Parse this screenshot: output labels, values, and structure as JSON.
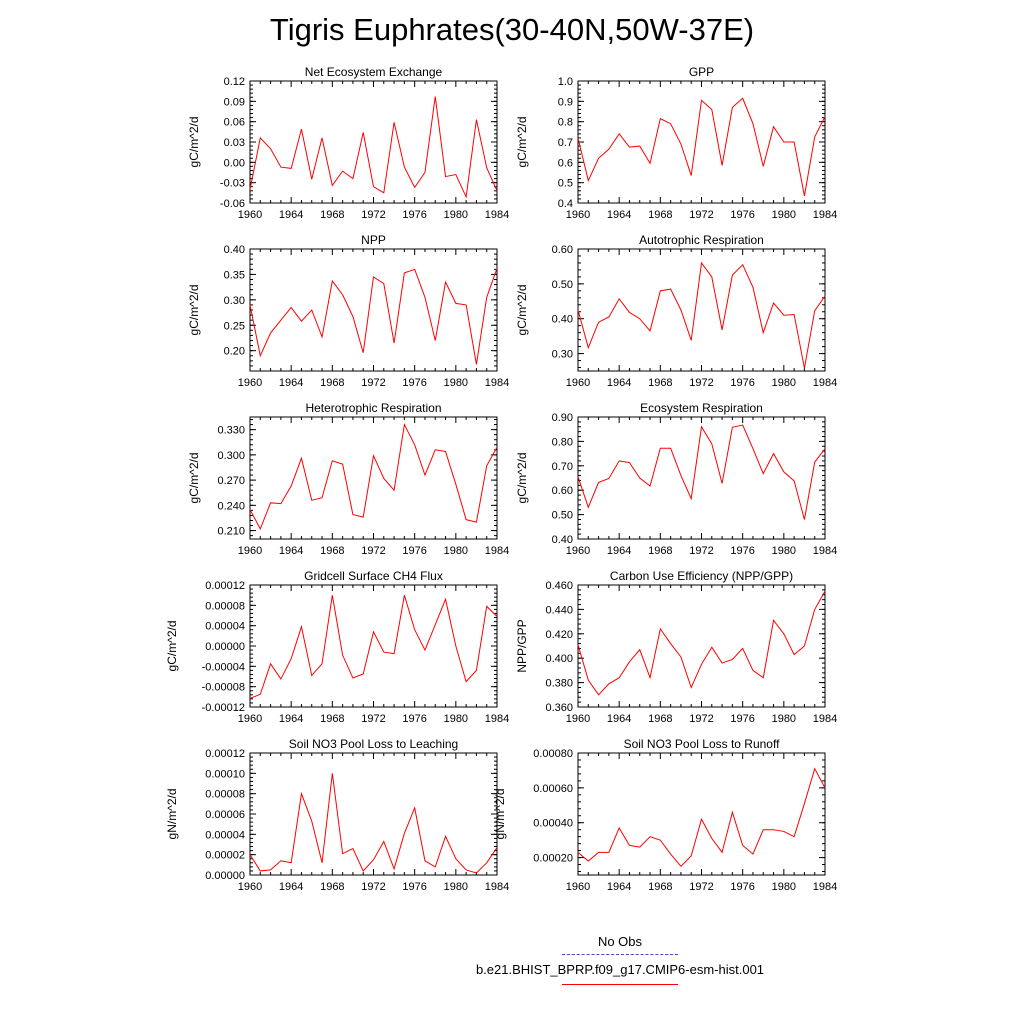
{
  "title": "Tigris Euphrates(30-40N,50W-37E)",
  "legend": {
    "entries": [
      {
        "label": "No Obs",
        "color": "#4444cc",
        "style": "dashed"
      },
      {
        "label": "b.e21.BHIST_BPRP.f09_g17.CMIP6-esm-hist.001",
        "color": "#ff0000",
        "style": "solid"
      }
    ]
  },
  "chart_data": [
    {
      "type": "line",
      "title": "Net Ecosystem Exchange",
      "ylabel": "gC/m^2/d",
      "x": [
        1960,
        1961,
        1962,
        1963,
        1964,
        1965,
        1966,
        1967,
        1968,
        1969,
        1970,
        1971,
        1972,
        1973,
        1974,
        1975,
        1976,
        1977,
        1978,
        1979,
        1980,
        1981,
        1982,
        1983,
        1984
      ],
      "xticks": [
        "1960",
        "1964",
        "1968",
        "1972",
        "1976",
        "1980",
        "1984"
      ],
      "xlim": [
        1960,
        1984
      ],
      "ylim": [
        -0.06,
        0.12
      ],
      "yticks": [
        "-0.06",
        "-0.03",
        "0.00",
        "0.03",
        "0.06",
        "0.09",
        "0.12"
      ],
      "yticks_values": [
        -0.06,
        -0.03,
        0.0,
        0.03,
        0.06,
        0.09,
        0.12
      ],
      "series": [
        {
          "color": "#ff0000",
          "values": [
            -0.04,
            0.036,
            0.02,
            -0.007,
            -0.009,
            0.049,
            -0.025,
            0.036,
            -0.034,
            -0.013,
            -0.024,
            0.044,
            -0.036,
            -0.045,
            0.059,
            -0.007,
            -0.037,
            -0.015,
            0.097,
            -0.021,
            -0.018,
            -0.051,
            0.063,
            -0.008,
            -0.042
          ]
        }
      ]
    },
    {
      "type": "line",
      "title": "GPP",
      "ylabel": "gC/m^2/d",
      "x": [
        1960,
        1961,
        1962,
        1963,
        1964,
        1965,
        1966,
        1967,
        1968,
        1969,
        1970,
        1971,
        1972,
        1973,
        1974,
        1975,
        1976,
        1977,
        1978,
        1979,
        1980,
        1981,
        1982,
        1983,
        1984
      ],
      "xticks": [
        "1960",
        "1964",
        "1968",
        "1972",
        "1976",
        "1980",
        "1984"
      ],
      "xlim": [
        1960,
        1984
      ],
      "ylim": [
        0.4,
        1.0
      ],
      "yticks": [
        "0.4",
        "0.5",
        "0.6",
        "0.7",
        "0.8",
        "0.9",
        "1.0"
      ],
      "yticks_values": [
        0.4,
        0.5,
        0.6,
        0.7,
        0.8,
        0.9,
        1.0
      ],
      "series": [
        {
          "color": "#ff0000",
          "values": [
            0.72,
            0.51,
            0.62,
            0.665,
            0.74,
            0.675,
            0.68,
            0.595,
            0.815,
            0.79,
            0.69,
            0.535,
            0.905,
            0.86,
            0.585,
            0.87,
            0.915,
            0.79,
            0.58,
            0.775,
            0.7,
            0.7,
            0.435,
            0.725,
            0.825
          ]
        }
      ]
    },
    {
      "type": "line",
      "title": "NPP",
      "ylabel": "gC/m^2/d",
      "x": [
        1960,
        1961,
        1962,
        1963,
        1964,
        1965,
        1966,
        1967,
        1968,
        1969,
        1970,
        1971,
        1972,
        1973,
        1974,
        1975,
        1976,
        1977,
        1978,
        1979,
        1980,
        1981,
        1982,
        1983,
        1984
      ],
      "xticks": [
        "1960",
        "1964",
        "1968",
        "1972",
        "1976",
        "1980",
        "1984"
      ],
      "xlim": [
        1960,
        1984
      ],
      "ylim": [
        0.16,
        0.4
      ],
      "yticks": [
        "0.20",
        "0.25",
        "0.30",
        "0.35",
        "0.40"
      ],
      "yticks_values": [
        0.2,
        0.25,
        0.3,
        0.35,
        0.4
      ],
      "series": [
        {
          "color": "#ff0000",
          "values": [
            0.29,
            0.19,
            0.235,
            0.26,
            0.285,
            0.258,
            0.28,
            0.227,
            0.337,
            0.31,
            0.267,
            0.196,
            0.345,
            0.332,
            0.215,
            0.353,
            0.36,
            0.305,
            0.22,
            0.335,
            0.293,
            0.29,
            0.173,
            0.305,
            0.362
          ]
        }
      ]
    },
    {
      "type": "line",
      "title": "Autotrophic Respiration",
      "ylabel": "gC/m^2/d",
      "x": [
        1960,
        1961,
        1962,
        1963,
        1964,
        1965,
        1966,
        1967,
        1968,
        1969,
        1970,
        1971,
        1972,
        1973,
        1974,
        1975,
        1976,
        1977,
        1978,
        1979,
        1980,
        1981,
        1982,
        1983,
        1984
      ],
      "xticks": [
        "1960",
        "1964",
        "1968",
        "1972",
        "1976",
        "1980",
        "1984"
      ],
      "xlim": [
        1960,
        1984
      ],
      "ylim": [
        0.25,
        0.6
      ],
      "yticks": [
        "0.30",
        "0.40",
        "0.50",
        "0.60"
      ],
      "yticks_values": [
        0.3,
        0.4,
        0.5,
        0.6
      ],
      "series": [
        {
          "color": "#ff0000",
          "values": [
            0.425,
            0.317,
            0.39,
            0.405,
            0.457,
            0.418,
            0.4,
            0.365,
            0.48,
            0.485,
            0.425,
            0.338,
            0.56,
            0.52,
            0.368,
            0.525,
            0.555,
            0.49,
            0.36,
            0.445,
            0.41,
            0.412,
            0.258,
            0.423,
            0.465
          ]
        }
      ]
    },
    {
      "type": "line",
      "title": "Heterotrophic Respiration",
      "ylabel": "gC/m^2/d",
      "x": [
        1960,
        1961,
        1962,
        1963,
        1964,
        1965,
        1966,
        1967,
        1968,
        1969,
        1970,
        1971,
        1972,
        1973,
        1974,
        1975,
        1976,
        1977,
        1978,
        1979,
        1980,
        1981,
        1982,
        1983,
        1984
      ],
      "xticks": [
        "1960",
        "1964",
        "1968",
        "1972",
        "1976",
        "1980",
        "1984"
      ],
      "xlim": [
        1960,
        1984
      ],
      "ylim": [
        0.2,
        0.345
      ],
      "yticks": [
        "0.210",
        "0.240",
        "0.270",
        "0.300",
        "0.330"
      ],
      "yticks_values": [
        0.21,
        0.24,
        0.27,
        0.3,
        0.33
      ],
      "series": [
        {
          "color": "#ff0000",
          "values": [
            0.235,
            0.212,
            0.243,
            0.242,
            0.263,
            0.296,
            0.246,
            0.249,
            0.293,
            0.289,
            0.229,
            0.226,
            0.299,
            0.272,
            0.258,
            0.336,
            0.312,
            0.276,
            0.306,
            0.304,
            0.265,
            0.223,
            0.22,
            0.287,
            0.309
          ]
        }
      ]
    },
    {
      "type": "line",
      "title": "Ecosystem Respiration",
      "ylabel": "gC/m^2/d",
      "x": [
        1960,
        1961,
        1962,
        1963,
        1964,
        1965,
        1966,
        1967,
        1968,
        1969,
        1970,
        1971,
        1972,
        1973,
        1974,
        1975,
        1976,
        1977,
        1978,
        1979,
        1980,
        1981,
        1982,
        1983,
        1984
      ],
      "xticks": [
        "1960",
        "1964",
        "1968",
        "1972",
        "1976",
        "1980",
        "1984"
      ],
      "xlim": [
        1960,
        1984
      ],
      "ylim": [
        0.4,
        0.9
      ],
      "yticks": [
        "0.40",
        "0.50",
        "0.60",
        "0.70",
        "0.80",
        "0.90"
      ],
      "yticks_values": [
        0.4,
        0.5,
        0.6,
        0.7,
        0.8,
        0.9
      ],
      "series": [
        {
          "color": "#ff0000",
          "values": [
            0.655,
            0.53,
            0.632,
            0.648,
            0.72,
            0.713,
            0.65,
            0.617,
            0.772,
            0.772,
            0.66,
            0.565,
            0.86,
            0.79,
            0.628,
            0.858,
            0.867,
            0.77,
            0.668,
            0.75,
            0.675,
            0.638,
            0.48,
            0.715,
            0.77
          ]
        }
      ]
    },
    {
      "type": "line",
      "title": "Gridcell Surface CH4 Flux",
      "ylabel": "gC/m^2/d",
      "x": [
        1960,
        1961,
        1962,
        1963,
        1964,
        1965,
        1966,
        1967,
        1968,
        1969,
        1970,
        1971,
        1972,
        1973,
        1974,
        1975,
        1976,
        1977,
        1978,
        1979,
        1980,
        1981,
        1982,
        1983,
        1984
      ],
      "xticks": [
        "1960",
        "1964",
        "1968",
        "1972",
        "1976",
        "1980",
        "1984"
      ],
      "xlim": [
        1960,
        1984
      ],
      "ylim": [
        -0.00012,
        0.00012
      ],
      "yticks": [
        "-0.00012",
        "-0.00008",
        "-0.00004",
        "0.00000",
        "0.00004",
        "0.00008",
        "0.00012"
      ],
      "yticks_values": [
        -0.00012,
        -8e-05,
        -4e-05,
        0.0,
        4e-05,
        8e-05,
        0.00012
      ],
      "series": [
        {
          "color": "#ff0000",
          "values": [
            -0.000103,
            -9.5e-05,
            -3.5e-05,
            -6.5e-05,
            -2.5e-05,
            3.8e-05,
            -5.8e-05,
            -3.5e-05,
            0.0001,
            -1.8e-05,
            -6.3e-05,
            -5.5e-05,
            2.8e-05,
            -1.2e-05,
            -1.5e-05,
            0.0001,
            3.2e-05,
            -8e-06,
            4.2e-05,
            9.2e-05,
            0.0,
            -7e-05,
            -4.8e-05,
            7.8e-05,
            5.8e-05
          ]
        }
      ]
    },
    {
      "type": "line",
      "title": "Carbon Use Efficiency (NPP/GPP)",
      "ylabel": "NPP/GPP",
      "x": [
        1960,
        1961,
        1962,
        1963,
        1964,
        1965,
        1966,
        1967,
        1968,
        1969,
        1970,
        1971,
        1972,
        1973,
        1974,
        1975,
        1976,
        1977,
        1978,
        1979,
        1980,
        1981,
        1982,
        1983,
        1984
      ],
      "xticks": [
        "1960",
        "1964",
        "1968",
        "1972",
        "1976",
        "1980",
        "1984"
      ],
      "xlim": [
        1960,
        1984
      ],
      "ylim": [
        0.36,
        0.46
      ],
      "yticks": [
        "0.360",
        "0.380",
        "0.400",
        "0.420",
        "0.440",
        "0.460"
      ],
      "yticks_values": [
        0.36,
        0.38,
        0.4,
        0.42,
        0.44,
        0.46
      ],
      "series": [
        {
          "color": "#ff0000",
          "values": [
            0.411,
            0.382,
            0.37,
            0.379,
            0.384,
            0.397,
            0.407,
            0.384,
            0.424,
            0.412,
            0.401,
            0.376,
            0.395,
            0.409,
            0.396,
            0.399,
            0.408,
            0.39,
            0.384,
            0.431,
            0.42,
            0.403,
            0.41,
            0.44,
            0.455
          ]
        }
      ]
    },
    {
      "type": "line",
      "title": "Soil NO3 Pool Loss to Leaching",
      "ylabel": "gN/m^2/d",
      "x": [
        1960,
        1961,
        1962,
        1963,
        1964,
        1965,
        1966,
        1967,
        1968,
        1969,
        1970,
        1971,
        1972,
        1973,
        1974,
        1975,
        1976,
        1977,
        1978,
        1979,
        1980,
        1981,
        1982,
        1983,
        1984
      ],
      "xticks": [
        "1960",
        "1964",
        "1968",
        "1972",
        "1976",
        "1980",
        "1984"
      ],
      "xlim": [
        1960,
        1984
      ],
      "ylim": [
        0.0,
        0.00012
      ],
      "yticks": [
        "0.00000",
        "0.00002",
        "0.00004",
        "0.00006",
        "0.00008",
        "0.00010",
        "0.00012"
      ],
      "yticks_values": [
        0.0,
        2e-05,
        4e-05,
        6e-05,
        8e-05,
        0.0001,
        0.00012
      ],
      "series": [
        {
          "color": "#ff0000",
          "values": [
            2e-05,
            4e-06,
            5e-06,
            1.4e-05,
            1.2e-05,
            8e-05,
            5.3e-05,
            1.2e-05,
            0.0001,
            2.1e-05,
            2.6e-05,
            4e-06,
            1.5e-05,
            3.3e-05,
            6e-06,
            4.1e-05,
            6.6e-05,
            1.4e-05,
            8e-06,
            3.8e-05,
            1.6e-05,
            5e-06,
            2e-06,
            1.2e-05,
            2.7e-05
          ]
        }
      ]
    },
    {
      "type": "line",
      "title": "Soil NO3 Pool Loss to Runoff",
      "ylabel": "gN/m^2/d",
      "x": [
        1960,
        1961,
        1962,
        1963,
        1964,
        1965,
        1966,
        1967,
        1968,
        1969,
        1970,
        1971,
        1972,
        1973,
        1974,
        1975,
        1976,
        1977,
        1978,
        1979,
        1980,
        1981,
        1982,
        1983,
        1984
      ],
      "xticks": [
        "1960",
        "1964",
        "1968",
        "1972",
        "1976",
        "1980",
        "1984"
      ],
      "xlim": [
        1960,
        1984
      ],
      "ylim": [
        0.0001,
        0.0008
      ],
      "yticks": [
        "0.00020",
        "0.00040",
        "0.00060",
        "0.00080"
      ],
      "yticks_values": [
        0.0002,
        0.0004,
        0.0006,
        0.0008
      ],
      "series": [
        {
          "color": "#ff0000",
          "values": [
            0.00023,
            0.00018,
            0.00023,
            0.00023,
            0.00037,
            0.00027,
            0.00026,
            0.00032,
            0.0003,
            0.00022,
            0.00015,
            0.00021,
            0.00042,
            0.00031,
            0.00023,
            0.00046,
            0.00027,
            0.00022,
            0.00036,
            0.00036,
            0.00035,
            0.00032,
            0.00051,
            0.00071,
            0.0006
          ]
        }
      ]
    }
  ]
}
